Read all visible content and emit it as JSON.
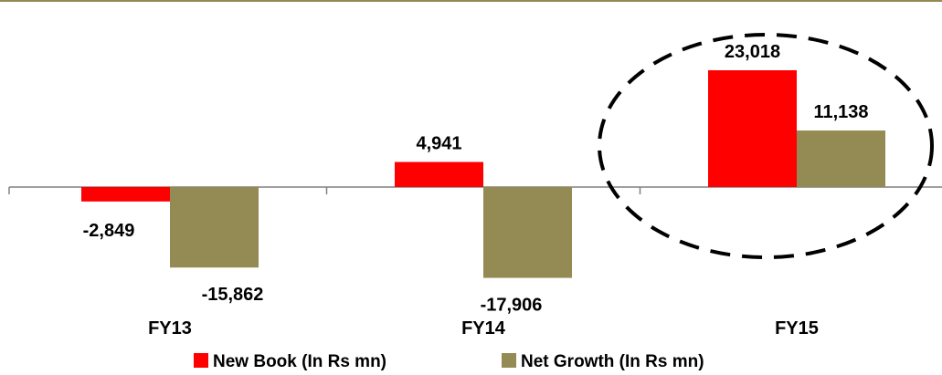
{
  "chart_data": {
    "type": "bar",
    "categories": [
      "FY13",
      "FY14",
      "FY15"
    ],
    "series": [
      {
        "name": "New Book (In Rs mn)",
        "color": "#ff0000",
        "values": [
          -2849,
          4941,
          23018
        ],
        "labels": [
          "-2,849",
          "4,941",
          "23,018"
        ]
      },
      {
        "name": "Net Growth (In Rs mn)",
        "color": "#948a54",
        "values": [
          -15862,
          -17906,
          11138
        ],
        "labels": [
          "-15,862",
          "-17,906",
          "11,138"
        ]
      }
    ],
    "ylim": [
      -20000,
      25000
    ],
    "grid": false,
    "legend_position": "bottom",
    "annotation": {
      "type": "dashed-ellipse",
      "category": "FY15"
    },
    "top_rule_color": "#948a54"
  }
}
